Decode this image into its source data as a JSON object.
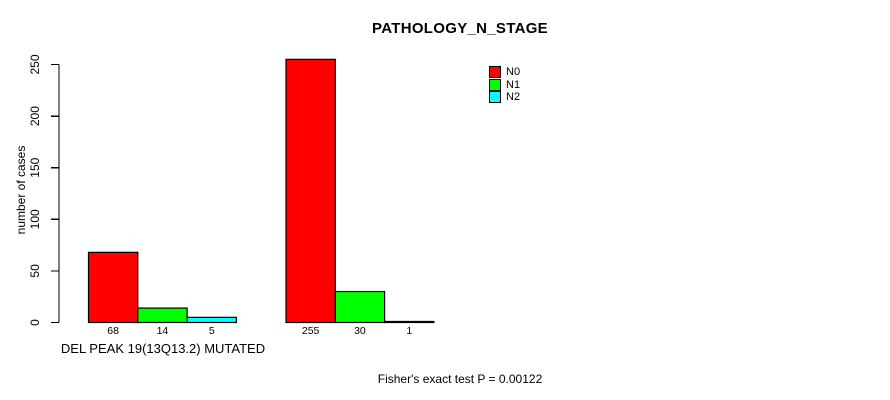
{
  "chart_data": {
    "type": "bar",
    "title": "PATHOLOGY_N_STAGE",
    "ylabel": "number of cases",
    "xlabel": "",
    "ylim": [
      0,
      260
    ],
    "yticks": [
      0,
      50,
      100,
      150,
      200,
      250
    ],
    "grid": false,
    "legend_position": "top-right",
    "categories": [
      "DEL PEAK 19(13Q13.2) MUTATED",
      ""
    ],
    "group_axis_labels": [
      "DEL PEAK 19(13Q13.2) MUTATED",
      ""
    ],
    "series": [
      {
        "name": "N0",
        "color": "#ff0000",
        "values": [
          68,
          255
        ]
      },
      {
        "name": "N1",
        "color": "#00ff00",
        "values": [
          14,
          30
        ]
      },
      {
        "name": "N2",
        "color": "#00ffff",
        "values": [
          5,
          1
        ]
      }
    ],
    "bar_value_labels": [
      [
        68,
        14,
        5
      ],
      [
        255,
        30,
        1
      ]
    ],
    "footnote": "Fisher's exact test P = 0.00122",
    "axis_color": "#000000",
    "bar_border_color": "#000000",
    "background_color": "#ffffff"
  }
}
